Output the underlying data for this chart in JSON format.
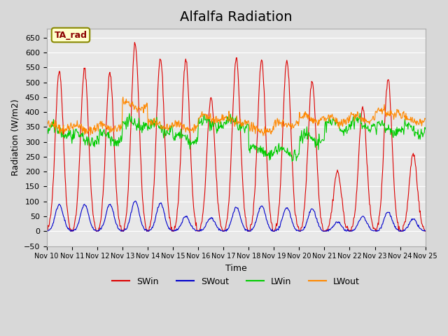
{
  "title": "Alfalfa Radiation",
  "ylabel": "Radiation (W/m2)",
  "xlabel": "Time",
  "annotation": "TA_rad",
  "ylim": [
    -50,
    680
  ],
  "xtick_labels": [
    "Nov 10",
    "Nov 11",
    "Nov 12",
    "Nov 13",
    "Nov 14",
    "Nov 15",
    "Nov 16",
    "Nov 17",
    "Nov 18",
    "Nov 19",
    "Nov 20",
    "Nov 21",
    "Nov 22",
    "Nov 23",
    "Nov 24",
    "Nov 25"
  ],
  "colors": {
    "SWin": "#dd0000",
    "SWout": "#0000cc",
    "LWin": "#00cc00",
    "LWout": "#ff8800"
  },
  "title_fontsize": 14,
  "annotation_bg": "#ffffcc",
  "annotation_border": "#888800",
  "SWin_peaks": [
    540,
    545,
    530,
    630,
    580,
    580,
    445,
    580,
    575,
    575,
    505,
    200,
    415,
    510,
    260
  ],
  "SWout_peaks": [
    90,
    90,
    90,
    100,
    95,
    50,
    45,
    80,
    85,
    80,
    75,
    30,
    50,
    65,
    40
  ],
  "LWin_day_base": [
    335,
    310,
    315,
    360,
    345,
    310,
    360,
    365,
    270,
    265,
    310,
    355,
    360,
    345,
    340
  ],
  "LWout_day_base": [
    350,
    345,
    350,
    420,
    360,
    350,
    380,
    370,
    340,
    360,
    380,
    370,
    380,
    400,
    375
  ]
}
